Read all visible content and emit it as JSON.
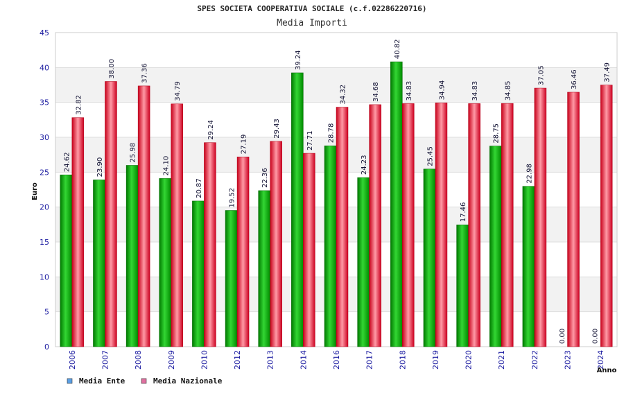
{
  "chart_data": {
    "type": "bar",
    "title": "SPES SOCIETA COOPERATIVA SOCIALE (c.f.02286220716)",
    "subtitle": "Media Importi",
    "xlabel": "Anno",
    "ylabel": "Euro",
    "ylim": [
      0,
      45
    ],
    "yticks": [
      0,
      5,
      10,
      15,
      20,
      25,
      30,
      35,
      40,
      45
    ],
    "grid": true,
    "legend_position": "bottom-left",
    "categories": [
      "2006",
      "2007",
      "2008",
      "2009",
      "2010",
      "2012",
      "2013",
      "2014",
      "2016",
      "2017",
      "2018",
      "2019",
      "2020",
      "2021",
      "2022",
      "2023",
      "2024"
    ],
    "series": [
      {
        "name": "Media Ente",
        "legend_color": "#5aa0e6",
        "color": "#0aa00a",
        "values": [
          24.62,
          23.9,
          25.98,
          24.1,
          20.87,
          19.52,
          22.36,
          39.24,
          28.78,
          24.23,
          40.82,
          25.45,
          17.46,
          28.75,
          22.98,
          0.0,
          0.0
        ],
        "labels": [
          "24.62",
          "23.90",
          "25.98",
          "24.10",
          "20.87",
          "19.52",
          "22.36",
          "39.24",
          "28.78",
          "24.23",
          "40.82",
          "25.45",
          "17.46",
          "28.75",
          "22.98",
          "0.00",
          "0.00"
        ]
      },
      {
        "name": "Media Nazionale",
        "legend_color": "#e070a0",
        "color": "#e0202e",
        "values": [
          32.82,
          38.0,
          37.36,
          34.79,
          29.24,
          27.19,
          29.43,
          27.71,
          34.32,
          34.68,
          34.83,
          34.94,
          34.83,
          34.85,
          37.05,
          36.46,
          37.49
        ],
        "labels": [
          "32.82",
          "38.00",
          "37.36",
          "34.79",
          "29.24",
          "27.19",
          "29.43",
          "27.71",
          "34.32",
          "34.68",
          "34.83",
          "34.94",
          "34.83",
          "34.85",
          "37.05",
          "36.46",
          "37.49"
        ]
      }
    ]
  }
}
